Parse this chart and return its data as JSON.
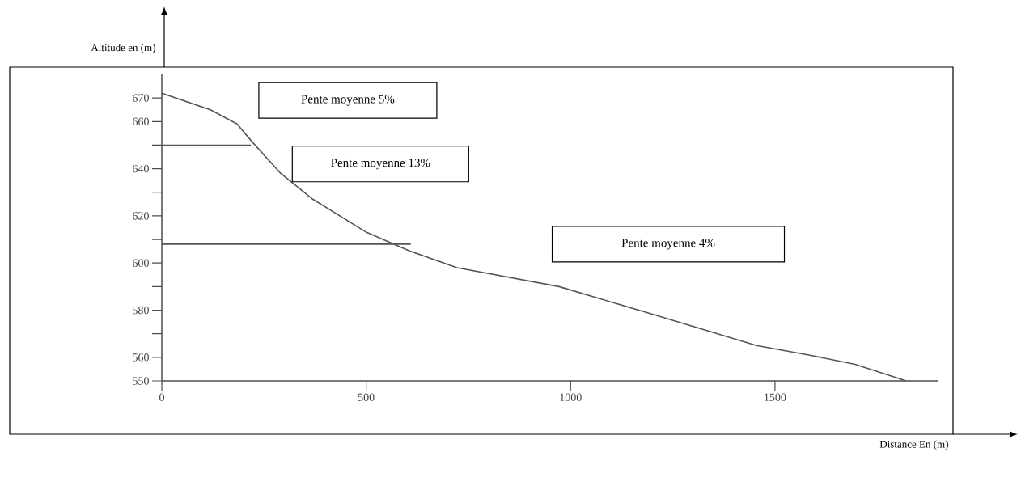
{
  "chart_data": {
    "type": "line",
    "xlabel": "Distance  En (m)",
    "ylabel": "Altitude en (m)",
    "xlim": [
      0,
      1900
    ],
    "xticks": [
      0,
      500,
      1000,
      1500
    ],
    "ylim": [
      550,
      680
    ],
    "yticks": [
      550,
      560,
      {
        "value": 570,
        "label": null
      },
      580,
      {
        "value": 590,
        "label": null
      },
      600,
      {
        "value": 610,
        "label": null
      },
      620,
      {
        "value": 630,
        "label": null
      },
      640,
      {
        "value": 650,
        "label": null
      },
      660,
      670
    ],
    "series": [
      {
        "color": "#555555",
        "x": [
          0,
          119,
          184,
          218,
          291,
          370,
          501,
          608,
          722,
          972,
          1205,
          1455,
          1583,
          1696,
          1821
        ],
        "values": [
          672,
          665,
          659,
          652,
          638,
          627,
          613,
          605,
          598,
          590,
          578,
          565,
          561,
          557,
          550
        ]
      },
      {
        "color": "#555555",
        "x": [
          0,
          218
        ],
        "values": [
          650,
          650
        ]
      },
      {
        "color": "#555555",
        "x": [
          0,
          609
        ],
        "values": [
          608,
          608
        ]
      }
    ],
    "annotations": [
      "Pente moyenne 5%",
      "Pente moyenne 13%",
      "Pente moyenne 4%"
    ],
    "marker": "none",
    "line_style": "solid"
  }
}
